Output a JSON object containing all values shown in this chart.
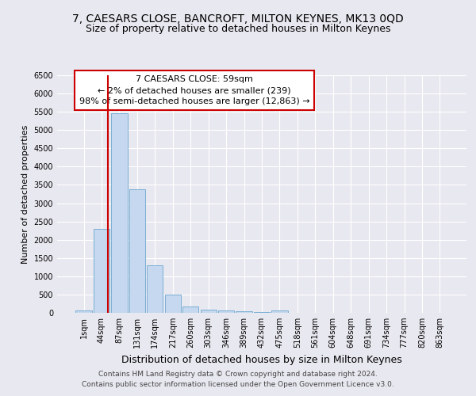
{
  "title1": "7, CAESARS CLOSE, BANCROFT, MILTON KEYNES, MK13 0QD",
  "title2": "Size of property relative to detached houses in Milton Keynes",
  "xlabel": "Distribution of detached houses by size in Milton Keynes",
  "ylabel": "Number of detached properties",
  "footer1": "Contains HM Land Registry data © Crown copyright and database right 2024.",
  "footer2": "Contains public sector information licensed under the Open Government Licence v3.0.",
  "annotation_title": "7 CAESARS CLOSE: 59sqm",
  "annotation_line1": "← 2% of detached houses are smaller (239)",
  "annotation_line2": "98% of semi-detached houses are larger (12,863) →",
  "bar_categories": [
    "1sqm",
    "44sqm",
    "87sqm",
    "131sqm",
    "174sqm",
    "217sqm",
    "260sqm",
    "303sqm",
    "346sqm",
    "389sqm",
    "432sqm",
    "475sqm",
    "518sqm",
    "561sqm",
    "604sqm",
    "648sqm",
    "691sqm",
    "734sqm",
    "777sqm",
    "820sqm",
    "863sqm"
  ],
  "bar_values": [
    70,
    2300,
    5450,
    3370,
    1290,
    490,
    175,
    95,
    55,
    35,
    20,
    55,
    10,
    5,
    5,
    5,
    5,
    3,
    3,
    2,
    2
  ],
  "bar_color": "#c5d8ef",
  "bar_edge_color": "#7aafd4",
  "vline_color": "#cc0000",
  "vline_x": 1.35,
  "ylim": [
    0,
    6500
  ],
  "yticks": [
    0,
    500,
    1000,
    1500,
    2000,
    2500,
    3000,
    3500,
    4000,
    4500,
    5000,
    5500,
    6000,
    6500
  ],
  "background_color": "#e8e8f0",
  "grid_color": "#ffffff",
  "title1_fontsize": 10,
  "title2_fontsize": 9,
  "annotation_fontsize": 8,
  "xlabel_fontsize": 9,
  "ylabel_fontsize": 8,
  "tick_fontsize": 7,
  "footer_fontsize": 6.5
}
